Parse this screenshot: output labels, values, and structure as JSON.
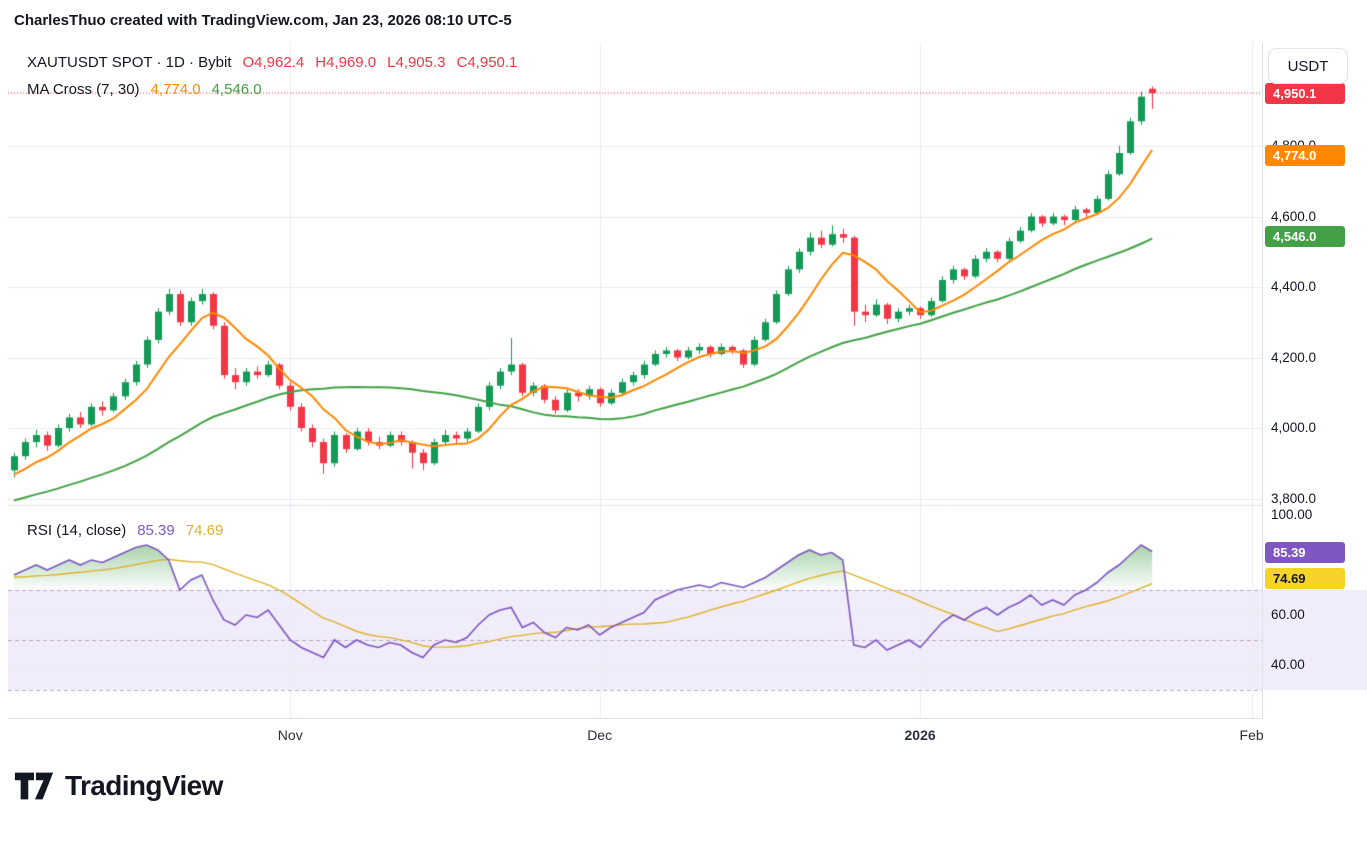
{
  "attribution": "CharlesThuo created with TradingView.com, Jan 23, 2026 08:10 UTC-5",
  "legend": {
    "symbol": "XAUTUSDT SPOT · 1D · Bybit",
    "ohlc": [
      {
        "k": "O",
        "v": "4,962.4"
      },
      {
        "k": "H",
        "v": "4,969.0"
      },
      {
        "k": "L",
        "v": "4,905.3"
      },
      {
        "k": "C",
        "v": "4,950.1"
      }
    ],
    "ma_cross": {
      "label": "MA Cross (7, 30)",
      "fast": "4,774.0",
      "slow": "4,546.0"
    },
    "rsi": {
      "label": "RSI (14, close)",
      "value": "85.39",
      "ma": "74.69"
    }
  },
  "price_scale": {
    "currency_button": "USDT",
    "levels": [
      {
        "label": "4,800.0",
        "value": 4800
      },
      {
        "label": "4,600.0",
        "value": 4600
      },
      {
        "label": "4,400.0",
        "value": 4400
      },
      {
        "label": "4,200.0",
        "value": 4200
      },
      {
        "label": "4,000.0",
        "value": 4000
      },
      {
        "label": "3,800.0",
        "value": 3800
      }
    ],
    "badges": [
      {
        "label": "4,950.1",
        "value": 4950.1,
        "bg": "#f23645",
        "fg": "#ffffff"
      },
      {
        "label": "4,774.0",
        "value": 4774.0,
        "bg": "#ff8800",
        "fg": "#ffffff"
      },
      {
        "label": "4,546.0",
        "value": 4546.0,
        "bg": "#43a047",
        "fg": "#ffffff"
      }
    ],
    "rsi_levels": [
      {
        "label": "100.00",
        "value": 100
      },
      {
        "label": "60.00",
        "value": 60
      },
      {
        "label": "40.00",
        "value": 40
      }
    ],
    "rsi_badges": [
      {
        "label": "85.39",
        "value": 85.39,
        "bg": "#7e57c2",
        "fg": "#ffffff"
      },
      {
        "label": "74.69",
        "value": 74.69,
        "bg": "#f5d327",
        "fg": "#131722"
      }
    ]
  },
  "time_axis": {
    "labels": [
      {
        "label": "Nov",
        "i": 25,
        "bold": false
      },
      {
        "label": "Dec",
        "i": 53,
        "bold": false
      },
      {
        "label": "2026",
        "i": 82,
        "bold": true
      },
      {
        "label": "Feb",
        "i": 112,
        "bold": false
      }
    ]
  },
  "footer": {
    "brand": "TradingView"
  },
  "chart_data": {
    "type": "candlestick",
    "symbol": "XAUTUSDT SPOT",
    "interval": "1D",
    "exchange": "Bybit",
    "last": {
      "o": 4962.4,
      "h": 4969.0,
      "l": 4905.3,
      "c": 4950.1
    },
    "indicators": {
      "ma_cross": {
        "fast_period": 7,
        "slow_period": 30,
        "fast_value": 4774.0,
        "slow_value": 4546.0
      },
      "rsi": {
        "period": 14,
        "source": "close",
        "value": 85.39,
        "ma_value": 74.69,
        "overbought": 70,
        "middle": 50,
        "oversold": 30
      }
    },
    "price_grid": [
      4800,
      4600,
      4400,
      4200,
      4000,
      3800
    ],
    "rsi_grid": [
      100,
      60,
      40
    ],
    "x_tick_labels": [
      "Nov",
      "Dec",
      "2026",
      "Feb"
    ],
    "candles": [
      [
        3880,
        3930,
        3860,
        3920
      ],
      [
        3920,
        3970,
        3910,
        3960
      ],
      [
        3960,
        3995,
        3945,
        3980
      ],
      [
        3980,
        3990,
        3935,
        3950
      ],
      [
        3950,
        4010,
        3945,
        4000
      ],
      [
        4000,
        4040,
        3990,
        4030
      ],
      [
        4030,
        4045,
        4000,
        4010
      ],
      [
        4010,
        4070,
        4005,
        4060
      ],
      [
        4060,
        4075,
        4035,
        4050
      ],
      [
        4050,
        4100,
        4045,
        4090
      ],
      [
        4090,
        4140,
        4080,
        4130
      ],
      [
        4130,
        4190,
        4120,
        4180
      ],
      [
        4180,
        4260,
        4170,
        4250
      ],
      [
        4250,
        4340,
        4240,
        4330
      ],
      [
        4330,
        4395,
        4320,
        4380
      ],
      [
        4380,
        4390,
        4290,
        4300
      ],
      [
        4300,
        4370,
        4290,
        4360
      ],
      [
        4360,
        4395,
        4350,
        4380
      ],
      [
        4380,
        4385,
        4280,
        4290
      ],
      [
        4290,
        4300,
        4140,
        4150
      ],
      [
        4150,
        4170,
        4110,
        4130
      ],
      [
        4130,
        4170,
        4120,
        4160
      ],
      [
        4160,
        4175,
        4140,
        4150
      ],
      [
        4150,
        4190,
        4145,
        4180
      ],
      [
        4180,
        4185,
        4110,
        4120
      ],
      [
        4120,
        4130,
        4050,
        4060
      ],
      [
        4060,
        4070,
        3990,
        4000
      ],
      [
        4000,
        4010,
        3945,
        3960
      ],
      [
        3960,
        3970,
        3870,
        3900
      ],
      [
        3900,
        3990,
        3890,
        3980
      ],
      [
        3980,
        3985,
        3930,
        3940
      ],
      [
        3940,
        4000,
        3935,
        3990
      ],
      [
        3990,
        4000,
        3950,
        3960
      ],
      [
        3960,
        3975,
        3940,
        3950
      ],
      [
        3950,
        3990,
        3945,
        3980
      ],
      [
        3980,
        3990,
        3950,
        3960
      ],
      [
        3960,
        3965,
        3885,
        3930
      ],
      [
        3930,
        3940,
        3880,
        3900
      ],
      [
        3900,
        3970,
        3895,
        3960
      ],
      [
        3960,
        3995,
        3950,
        3980
      ],
      [
        3980,
        3990,
        3955,
        3970
      ],
      [
        3970,
        4000,
        3960,
        3990
      ],
      [
        3990,
        4070,
        3985,
        4060
      ],
      [
        4060,
        4130,
        4050,
        4120
      ],
      [
        4120,
        4170,
        4110,
        4160
      ],
      [
        4160,
        4255,
        4150,
        4180
      ],
      [
        4180,
        4185,
        4090,
        4100
      ],
      [
        4100,
        4130,
        4090,
        4120
      ],
      [
        4120,
        4125,
        4070,
        4080
      ],
      [
        4080,
        4090,
        4040,
        4050
      ],
      [
        4050,
        4110,
        4045,
        4100
      ],
      [
        4100,
        4110,
        4075,
        4090
      ],
      [
        4090,
        4120,
        4080,
        4110
      ],
      [
        4110,
        4115,
        4060,
        4070
      ],
      [
        4070,
        4110,
        4065,
        4100
      ],
      [
        4100,
        4140,
        4095,
        4130
      ],
      [
        4130,
        4160,
        4120,
        4150
      ],
      [
        4150,
        4190,
        4140,
        4180
      ],
      [
        4180,
        4220,
        4175,
        4210
      ],
      [
        4210,
        4230,
        4200,
        4220
      ],
      [
        4220,
        4225,
        4190,
        4200
      ],
      [
        4200,
        4230,
        4195,
        4220
      ],
      [
        4220,
        4240,
        4210,
        4230
      ],
      [
        4230,
        4235,
        4200,
        4210
      ],
      [
        4210,
        4240,
        4205,
        4230
      ],
      [
        4230,
        4235,
        4210,
        4220
      ],
      [
        4220,
        4225,
        4170,
        4180
      ],
      [
        4180,
        4260,
        4175,
        4250
      ],
      [
        4250,
        4310,
        4245,
        4300
      ],
      [
        4300,
        4390,
        4295,
        4380
      ],
      [
        4380,
        4460,
        4375,
        4450
      ],
      [
        4450,
        4510,
        4440,
        4500
      ],
      [
        4500,
        4555,
        4490,
        4540
      ],
      [
        4540,
        4560,
        4510,
        4520
      ],
      [
        4520,
        4575,
        4515,
        4550
      ],
      [
        4550,
        4565,
        4525,
        4540
      ],
      [
        4540,
        4545,
        4290,
        4330
      ],
      [
        4330,
        4350,
        4300,
        4320
      ],
      [
        4320,
        4365,
        4315,
        4350
      ],
      [
        4350,
        4355,
        4295,
        4310
      ],
      [
        4310,
        4340,
        4300,
        4330
      ],
      [
        4330,
        4350,
        4320,
        4340
      ],
      [
        4340,
        4345,
        4310,
        4320
      ],
      [
        4320,
        4370,
        4315,
        4360
      ],
      [
        4360,
        4430,
        4355,
        4420
      ],
      [
        4420,
        4460,
        4410,
        4450
      ],
      [
        4450,
        4455,
        4420,
        4430
      ],
      [
        4430,
        4490,
        4425,
        4480
      ],
      [
        4480,
        4510,
        4470,
        4500
      ],
      [
        4500,
        4505,
        4470,
        4480
      ],
      [
        4480,
        4540,
        4475,
        4530
      ],
      [
        4530,
        4570,
        4525,
        4560
      ],
      [
        4560,
        4610,
        4555,
        4600
      ],
      [
        4600,
        4605,
        4570,
        4580
      ],
      [
        4580,
        4610,
        4575,
        4600
      ],
      [
        4600,
        4605,
        4575,
        4590
      ],
      [
        4590,
        4630,
        4585,
        4620
      ],
      [
        4620,
        4625,
        4595,
        4610
      ],
      [
        4610,
        4660,
        4605,
        4650
      ],
      [
        4650,
        4730,
        4645,
        4720
      ],
      [
        4720,
        4800,
        4715,
        4780
      ],
      [
        4780,
        4880,
        4775,
        4870
      ],
      [
        4870,
        4955,
        4860,
        4940
      ],
      [
        4962.4,
        4969.0,
        4905.3,
        4950.1
      ]
    ],
    "rsi_values": [
      76,
      78,
      80,
      78,
      80,
      82,
      80,
      82,
      81,
      83,
      85,
      87,
      88,
      86,
      82,
      70,
      74,
      76,
      66,
      58,
      56,
      60,
      59,
      62,
      56,
      50,
      47,
      45,
      43,
      50,
      47,
      50,
      48,
      47,
      49,
      48,
      45,
      43,
      48,
      50,
      49,
      51,
      56,
      60,
      62,
      63,
      55,
      57,
      53,
      51,
      55,
      54,
      56,
      52,
      55,
      57,
      59,
      61,
      66,
      68,
      70,
      71,
      72,
      71,
      73,
      72,
      71,
      73,
      75,
      78,
      81,
      84,
      86,
      84,
      85,
      82,
      48,
      47,
      50,
      46,
      48,
      50,
      47,
      52,
      57,
      60,
      58,
      61,
      63,
      60,
      63,
      65,
      68,
      64,
      66,
      64,
      68,
      70,
      73,
      77,
      80,
      84,
      88,
      85.39
    ],
    "colors": {
      "up": "#129a56",
      "down": "#f23645",
      "ma_fast": "#ff8800",
      "ma_slow": "#43a047",
      "rsi": "#7e57c2",
      "rsi_ma": "#deb226",
      "band": "#f1ecf9",
      "grid": "#e9edf4",
      "overbought_fill": "#43a047"
    }
  }
}
